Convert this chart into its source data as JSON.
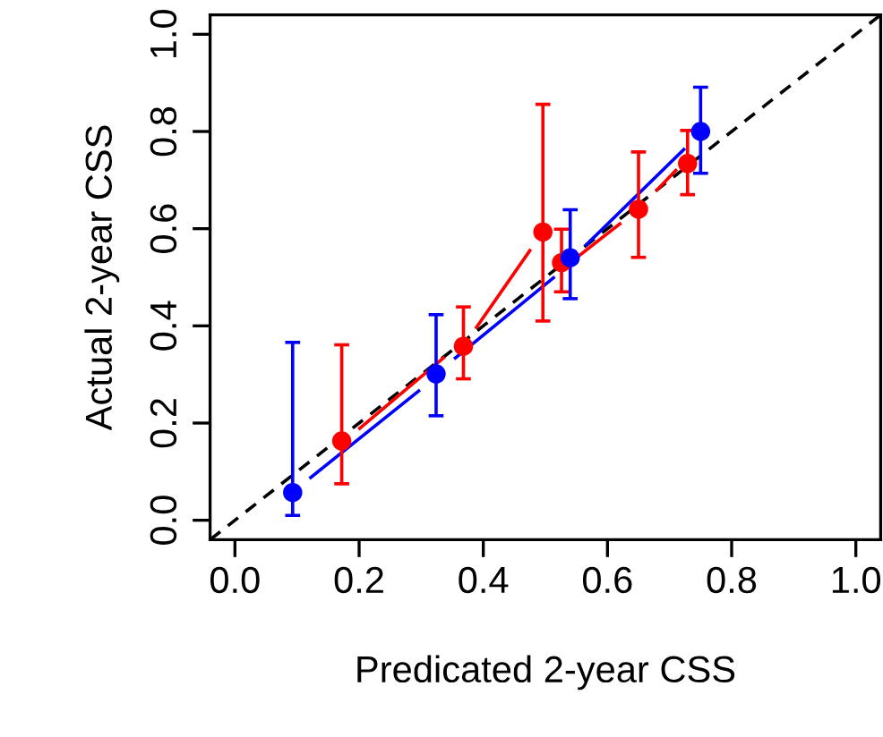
{
  "chart_data": {
    "type": "scatter",
    "xlabel": "Predicated 2-year CSS",
    "ylabel": "Actual 2-year CSS",
    "xlim": [
      -0.04,
      1.04
    ],
    "ylim": [
      -0.04,
      1.04
    ],
    "xticks": [
      {
        "value": 0,
        "label": "0.0"
      },
      0.2,
      0.4,
      0.6,
      0.8,
      {
        "value": 1,
        "label": "1.0"
      }
    ],
    "yticks": [
      {
        "value": 0,
        "label": "0.0"
      },
      0.2,
      0.4,
      0.6,
      0.8,
      {
        "value": 1,
        "label": "1.0"
      }
    ],
    "grid": false,
    "series": [
      {
        "type": "line",
        "color": "#000000",
        "line_style": "dashed",
        "x": [
          -0.04,
          1.04
        ],
        "values": [
          -0.04,
          1.04
        ]
      },
      {
        "type": "line",
        "color": "#0000ff",
        "line_style": "solid",
        "x": [
          0.122,
          0.296,
          null,
          0.355,
          0.513,
          null,
          0.566,
          0.723
        ],
        "values": [
          0.088,
          0.266,
          null,
          0.334,
          0.499,
          null,
          0.567,
          0.763
        ]
      },
      {
        "type": "line",
        "color": "#ff0000",
        "line_style": "solid",
        "x": [
          0.201,
          0.336,
          null,
          0.389,
          0.475,
          null,
          0.55,
          0.62,
          null,
          0.68,
          0.71
        ],
        "values": [
          0.189,
          0.334,
          null,
          0.397,
          0.555,
          null,
          0.54,
          0.61,
          null,
          0.68,
          0.72
        ]
      },
      {
        "color": "#ff0000",
        "marker": "circle",
        "x": [
          0.172,
          0.368,
          0.496,
          0.526,
          0.65,
          0.729
        ],
        "values": [
          0.163,
          0.358,
          0.593,
          0.53,
          0.64,
          0.734
        ],
        "errors": [
          [
            0.075,
            0.361
          ],
          [
            0.291,
            0.439
          ],
          [
            0.41,
            0.856
          ],
          [
            0.47,
            0.599
          ],
          [
            0.541,
            0.758
          ],
          [
            0.67,
            0.802
          ]
        ]
      },
      {
        "color": "#0000ff",
        "marker": "circle",
        "x": [
          0.093,
          0.324,
          0.54,
          0.75
        ],
        "values": [
          0.057,
          0.301,
          0.54,
          0.8
        ],
        "errors": [
          [
            0.01,
            0.366
          ],
          [
            0.215,
            0.423
          ],
          [
            0.456,
            0.639
          ],
          [
            0.714,
            0.891
          ]
        ]
      }
    ]
  }
}
